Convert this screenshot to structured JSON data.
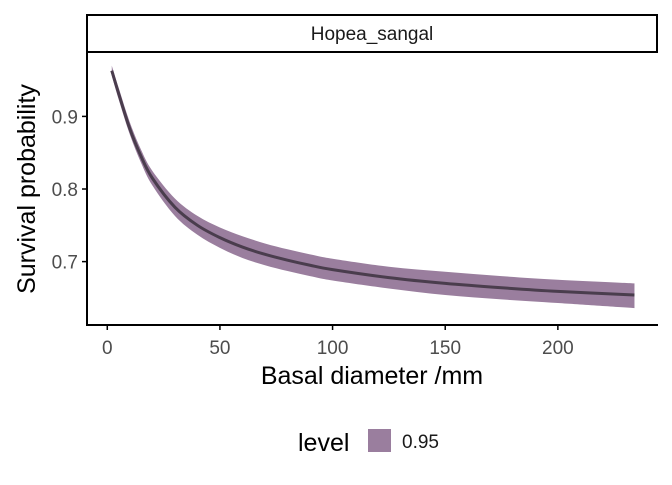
{
  "chart_data": {
    "type": "area",
    "facet_label": "Hopea_sangal",
    "xlabel": "Basal diameter /mm",
    "ylabel": "Survival probability",
    "xlim": [
      -9,
      244
    ],
    "ylim": [
      0.6127,
      0.9887
    ],
    "x_ticks": [
      0,
      50,
      100,
      150,
      200
    ],
    "y_ticks": [
      0.7,
      0.8,
      0.9
    ],
    "x_tick_labels": [
      "0",
      "50",
      "100",
      "150",
      "200"
    ],
    "y_tick_labels": [
      "0.7",
      "0.8",
      "0.9"
    ],
    "grid": false,
    "legend": {
      "title": "level",
      "position": "bottom",
      "entries": [
        "0.95"
      ]
    },
    "colors": {
      "ribbon": "#9a7e9e",
      "line": "#4a3d4d",
      "axis": "#000000",
      "tick_label": "#4d4d4d"
    },
    "series": [
      {
        "name": "0.95",
        "x": [
          2,
          5,
          10,
          15,
          20,
          30,
          40,
          50,
          60,
          70,
          80,
          90,
          100,
          125,
          150,
          175,
          200,
          234
        ],
        "y": [
          0.963,
          0.932,
          0.883,
          0.845,
          0.815,
          0.775,
          0.75,
          0.733,
          0.72,
          0.71,
          0.702,
          0.695,
          0.689,
          0.678,
          0.67,
          0.664,
          0.659,
          0.654
        ],
        "lower": [
          0.956,
          0.924,
          0.875,
          0.836,
          0.805,
          0.763,
          0.737,
          0.719,
          0.705,
          0.695,
          0.687,
          0.68,
          0.674,
          0.663,
          0.654,
          0.648,
          0.643,
          0.636
        ],
        "upper": [
          0.97,
          0.94,
          0.892,
          0.854,
          0.825,
          0.787,
          0.763,
          0.747,
          0.735,
          0.725,
          0.717,
          0.71,
          0.704,
          0.693,
          0.686,
          0.68,
          0.675,
          0.67
        ]
      }
    ]
  }
}
